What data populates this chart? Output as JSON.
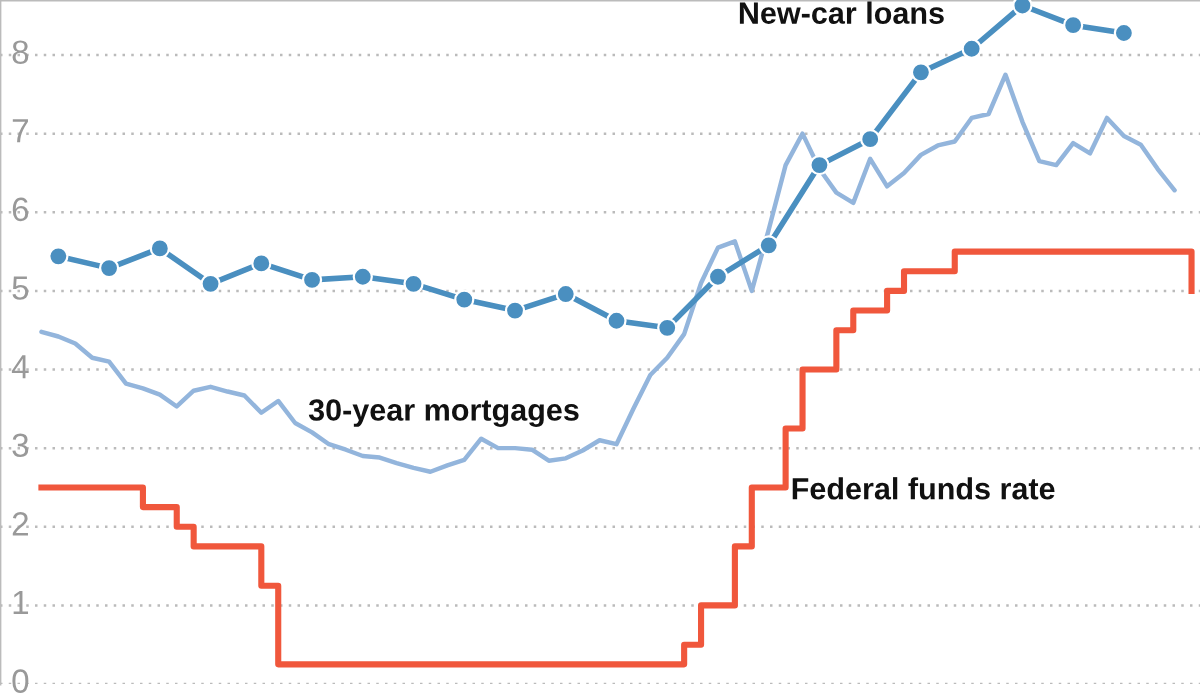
{
  "chart_data": {
    "type": "line",
    "categories": [
      null,
      null,
      null,
      null,
      null,
      null,
      null,
      null,
      null,
      null,
      null,
      null,
      null,
      null,
      null,
      null,
      null,
      null,
      null,
      null,
      null,
      null,
      null,
      null,
      null,
      null,
      null,
      null,
      null,
      null,
      null,
      null,
      null,
      null,
      null,
      null,
      null,
      null,
      null,
      null,
      null,
      null,
      null,
      null,
      null,
      null,
      null,
      null,
      null,
      null,
      null,
      null,
      null,
      null,
      null,
      null,
      null,
      null,
      null,
      null,
      null,
      null,
      null,
      null,
      null,
      null,
      null,
      null,
      null
    ],
    "ylim": [
      0,
      8.7
    ],
    "yticks": [
      0,
      1,
      2,
      3,
      4,
      5,
      6,
      7,
      8
    ],
    "tick_labels": "y",
    "grid": "y",
    "series": [
      {
        "name": "New-car loans",
        "marker": "circle",
        "color": "#4a8fc0",
        "values": [
          null,
          5.44,
          null,
          null,
          5.29,
          null,
          null,
          5.54,
          null,
          null,
          5.09,
          null,
          null,
          5.35,
          null,
          null,
          5.14,
          null,
          null,
          5.18,
          null,
          null,
          5.09,
          null,
          null,
          4.89,
          null,
          null,
          4.75,
          null,
          null,
          4.96,
          null,
          null,
          4.62,
          null,
          null,
          4.53,
          null,
          null,
          5.18,
          null,
          null,
          5.58,
          null,
          null,
          6.6,
          null,
          null,
          6.93,
          null,
          null,
          7.78,
          null,
          null,
          8.08,
          null,
          null,
          8.63,
          null,
          null,
          8.38,
          null,
          null,
          8.28,
          null,
          null,
          null,
          null
        ]
      },
      {
        "name": "30-year mortgages",
        "marker": "none",
        "color": "#93b5dc",
        "values": [
          4.48,
          4.42,
          4.33,
          4.15,
          4.1,
          3.82,
          3.76,
          3.68,
          3.53,
          3.73,
          3.78,
          3.72,
          3.67,
          3.45,
          3.6,
          3.32,
          3.2,
          3.05,
          2.98,
          2.9,
          2.88,
          2.81,
          2.75,
          2.7,
          2.78,
          2.85,
          3.12,
          3.0,
          3.0,
          2.98,
          2.84,
          2.87,
          2.97,
          3.1,
          3.05,
          3.5,
          3.93,
          4.15,
          4.45,
          5.1,
          5.55,
          5.63,
          5.0,
          5.78,
          6.6,
          7.0,
          6.55,
          6.25,
          6.12,
          6.68,
          6.33,
          6.5,
          6.73,
          6.85,
          6.9,
          7.2,
          7.25,
          7.75,
          7.15,
          6.65,
          6.6,
          6.88,
          6.75,
          7.2,
          6.97,
          6.86,
          6.55,
          6.28,
          null
        ]
      },
      {
        "name": "Federal funds rate",
        "type": "step",
        "marker": "none",
        "color": "#f0573c",
        "values": [
          2.5,
          2.5,
          2.5,
          2.5,
          2.5,
          2.5,
          2.25,
          2.25,
          2.0,
          1.75,
          1.75,
          1.75,
          1.75,
          1.25,
          0.25,
          0.25,
          0.25,
          0.25,
          0.25,
          0.25,
          0.25,
          0.25,
          0.25,
          0.25,
          0.25,
          0.25,
          0.25,
          0.25,
          0.25,
          0.25,
          0.25,
          0.25,
          0.25,
          0.25,
          0.25,
          0.25,
          0.25,
          0.25,
          0.5,
          1.0,
          1.0,
          1.75,
          2.5,
          2.5,
          3.25,
          4.0,
          4.0,
          4.5,
          4.75,
          4.75,
          5.0,
          5.25,
          5.25,
          5.25,
          5.5,
          5.5,
          5.5,
          5.5,
          5.5,
          5.5,
          5.5,
          5.5,
          5.5,
          5.5,
          5.5,
          5.5,
          5.5,
          5.5,
          5.0
        ]
      }
    ]
  }
}
